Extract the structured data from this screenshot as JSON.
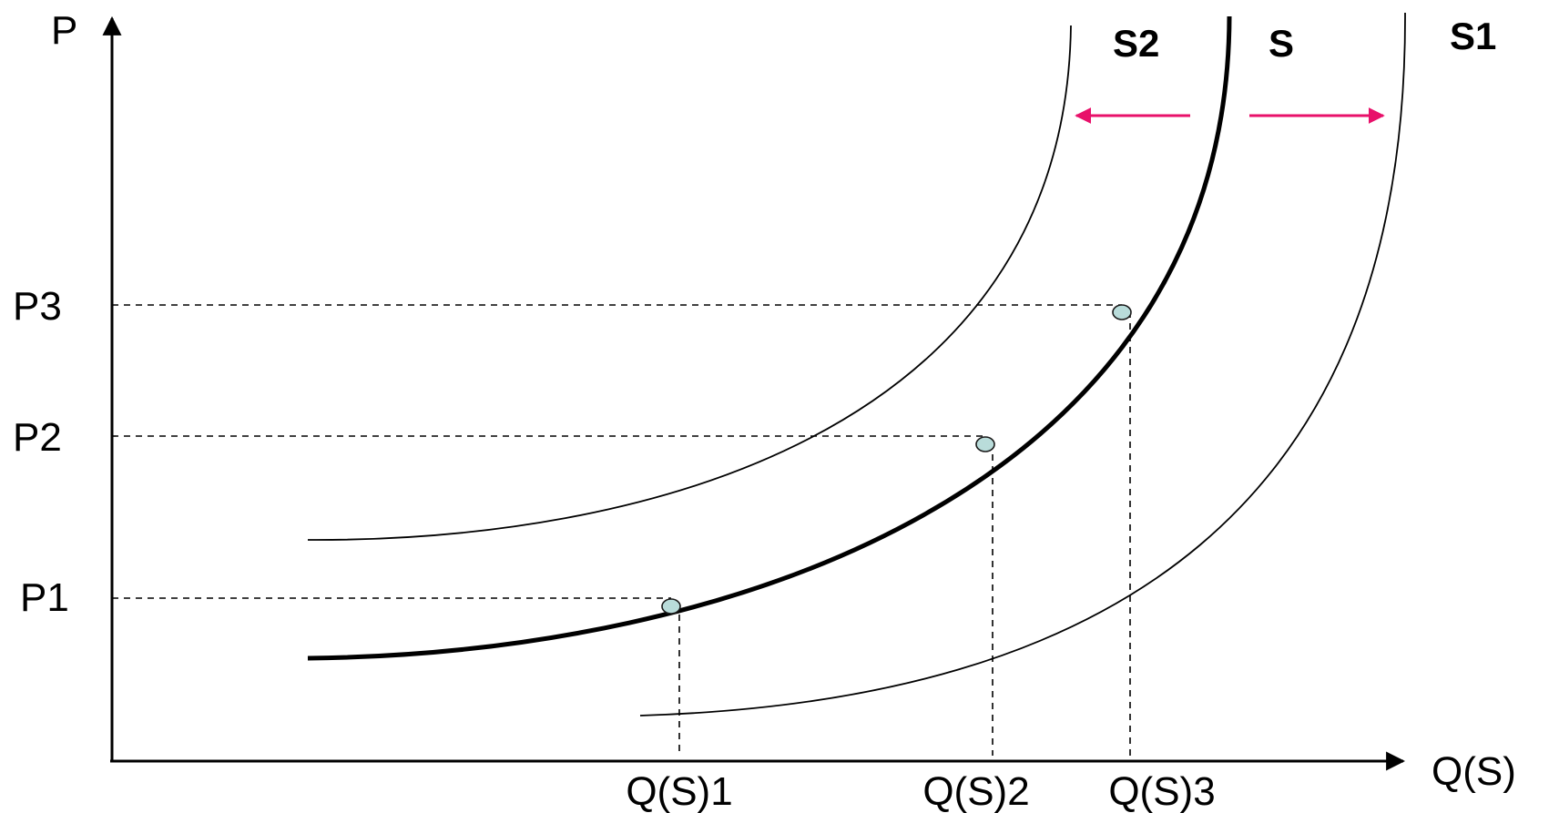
{
  "diagram": {
    "type": "supply-shift",
    "y_axis_label": "P",
    "x_axis_label": "Q(S)",
    "price_levels": [
      "P1",
      "P2",
      "P3"
    ],
    "quantity_levels": [
      "Q(S)1",
      "Q(S)2",
      "Q(S)3"
    ],
    "curves": [
      {
        "label": "S2",
        "style": "thin"
      },
      {
        "label": "S",
        "style": "thick"
      },
      {
        "label": "S1",
        "style": "thin"
      }
    ],
    "shift_arrows": [
      {
        "direction": "left",
        "toward": "S2"
      },
      {
        "direction": "right",
        "toward": "S1"
      }
    ],
    "points_on": "S",
    "colors": {
      "arrow": "#e8106a",
      "point_fill": "#b9dcda",
      "axis": "#000000"
    }
  }
}
